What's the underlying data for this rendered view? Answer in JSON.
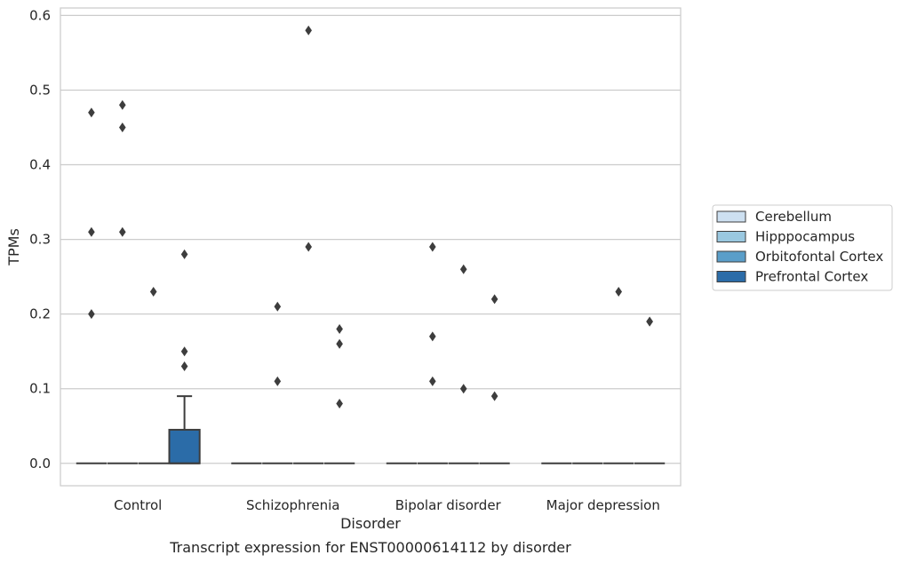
{
  "chart_data": {
    "type": "box",
    "title": "",
    "caption": "Transcript expression for ENST00000614112 by disorder",
    "xlabel": "Disorder",
    "ylabel": "TPMs",
    "ylim": [
      -0.03,
      0.61
    ],
    "yticks": [
      "0.0",
      "0.1",
      "0.2",
      "0.3",
      "0.4",
      "0.5",
      "0.6"
    ],
    "grid": "horizontal",
    "legend_position": "right",
    "categories": [
      "Control",
      "Schizophrenia",
      "Bipolar disorder",
      "Major depression"
    ],
    "series": [
      {
        "name": "Cerebellum",
        "color": "#cde0f1",
        "boxes": [
          {
            "q1": 0,
            "median": 0,
            "q3": 0,
            "whisker_low": 0,
            "whisker_high": 0,
            "outliers": [
              0.47,
              0.31,
              0.2
            ]
          },
          {
            "q1": 0,
            "median": 0,
            "q3": 0,
            "whisker_low": 0,
            "whisker_high": 0,
            "outliers": []
          },
          {
            "q1": 0,
            "median": 0,
            "q3": 0,
            "whisker_low": 0,
            "whisker_high": 0,
            "outliers": []
          },
          {
            "q1": 0,
            "median": 0,
            "q3": 0,
            "whisker_low": 0,
            "whisker_high": 0,
            "outliers": []
          }
        ]
      },
      {
        "name": "Hipppocampus",
        "color": "#9ac8e0",
        "boxes": [
          {
            "q1": 0,
            "median": 0,
            "q3": 0,
            "whisker_low": 0,
            "whisker_high": 0,
            "outliers": [
              0.48,
              0.45,
              0.31
            ]
          },
          {
            "q1": 0,
            "median": 0,
            "q3": 0,
            "whisker_low": 0,
            "whisker_high": 0,
            "outliers": [
              0.21,
              0.11
            ]
          },
          {
            "q1": 0,
            "median": 0,
            "q3": 0,
            "whisker_low": 0,
            "whisker_high": 0,
            "outliers": [
              0.29,
              0.17,
              0.11
            ]
          },
          {
            "q1": 0,
            "median": 0,
            "q3": 0,
            "whisker_low": 0,
            "whisker_high": 0,
            "outliers": []
          }
        ]
      },
      {
        "name": "Orbitofontal Cortex",
        "color": "#5a9ec9",
        "boxes": [
          {
            "q1": 0,
            "median": 0,
            "q3": 0,
            "whisker_low": 0,
            "whisker_high": 0,
            "outliers": [
              0.23
            ]
          },
          {
            "q1": 0,
            "median": 0,
            "q3": 0,
            "whisker_low": 0,
            "whisker_high": 0,
            "outliers": [
              0.58,
              0.29
            ]
          },
          {
            "q1": 0,
            "median": 0,
            "q3": 0,
            "whisker_low": 0,
            "whisker_high": 0,
            "outliers": [
              0.26,
              0.1
            ]
          },
          {
            "q1": 0,
            "median": 0,
            "q3": 0,
            "whisker_low": 0,
            "whisker_high": 0,
            "outliers": [
              0.23
            ]
          }
        ]
      },
      {
        "name": "Prefrontal Cortex",
        "color": "#2b6ca8",
        "boxes": [
          {
            "q1": 0,
            "median": 0,
            "q3": 0.045,
            "whisker_low": 0,
            "whisker_high": 0.09,
            "outliers": [
              0.28,
              0.15,
              0.13
            ]
          },
          {
            "q1": 0,
            "median": 0,
            "q3": 0,
            "whisker_low": 0,
            "whisker_high": 0,
            "outliers": [
              0.18,
              0.16,
              0.08
            ]
          },
          {
            "q1": 0,
            "median": 0,
            "q3": 0,
            "whisker_low": 0,
            "whisker_high": 0,
            "outliers": [
              0.22,
              0.09
            ]
          },
          {
            "q1": 0,
            "median": 0,
            "q3": 0,
            "whisker_low": 0,
            "whisker_high": 0,
            "outliers": [
              0.19,
              0.19
            ]
          }
        ]
      }
    ]
  }
}
